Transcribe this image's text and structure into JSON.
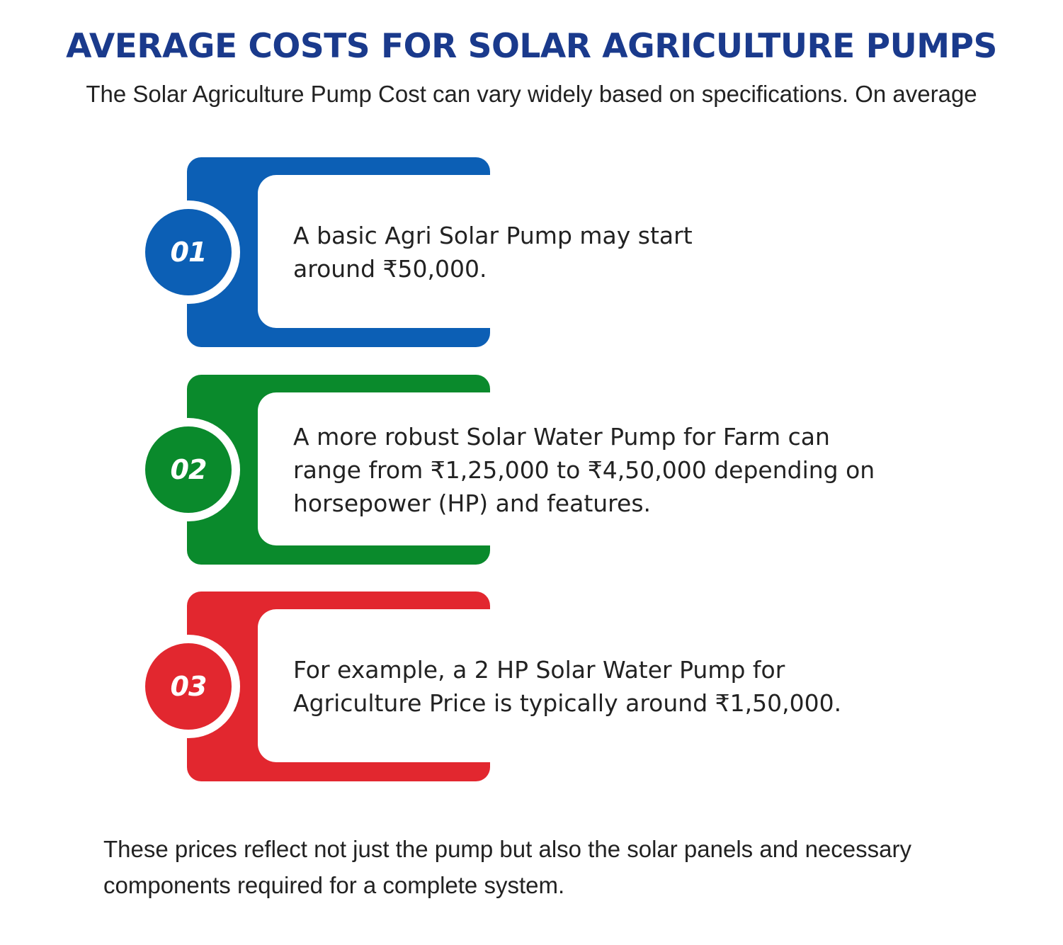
{
  "title": "AVERAGE COSTS FOR SOLAR AGRICULTURE PUMPS",
  "subtitle": "The Solar Agriculture Pump Cost can vary widely based on specifications. On average",
  "colors": {
    "title": "#1a3a8c",
    "step_1": "#0c5fb5",
    "step_2": "#0a8a2c",
    "step_3": "#e2272f"
  },
  "steps": [
    {
      "number": "01",
      "text": "A basic Agri Solar Pump may start around ₹50,000."
    },
    {
      "number": "02",
      "text": "A more robust Solar Water Pump for Farm can range from ₹1,25,000 to ₹4,50,000 depending on horsepower (HP) and features."
    },
    {
      "number": "03",
      "text": "For example, a 2 HP Solar Water Pump for Agriculture Price is typically around ₹1,50,000."
    }
  ],
  "footer": "These prices reflect not just the pump but also the solar panels and necessary components required for a complete system."
}
